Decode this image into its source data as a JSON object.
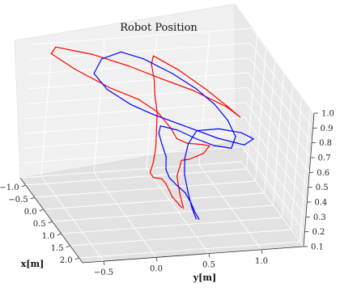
{
  "chart_data": {
    "type": "line",
    "projection": "3d",
    "title": "Robot Position",
    "xlabel": "x[m]",
    "ylabel": "y[m]",
    "zlabel": "",
    "grid": true,
    "xlim": [
      -1.3,
      2.2
    ],
    "ylim": [
      -0.7,
      1.4
    ],
    "zlim": [
      0.1,
      1.0
    ],
    "x_ticks": [
      "−1.0",
      "−0.5",
      "0.0",
      "0.5",
      "1.0",
      "1.5",
      "2.0"
    ],
    "y_ticks": [
      "−0.5",
      "0.0",
      "0.5",
      "1.0"
    ],
    "z_ticks": [
      "0.1",
      "0.2",
      "0.3",
      "0.4",
      "0.5",
      "0.6",
      "0.7",
      "0.8",
      "0.9",
      "1.0"
    ],
    "series": [
      {
        "color": "#ff0000",
        "points": [
          [
            0.9,
            0.45,
            0.2
          ],
          [
            0.86,
            0.4,
            0.24
          ],
          [
            0.92,
            0.35,
            0.28
          ],
          [
            1.0,
            0.3,
            0.34
          ],
          [
            1.05,
            0.25,
            0.4
          ],
          [
            1.1,
            0.2,
            0.44
          ],
          [
            1.2,
            0.1,
            0.47
          ],
          [
            1.28,
            0.05,
            0.52
          ],
          [
            1.25,
            0.08,
            0.58
          ],
          [
            1.05,
            0.13,
            0.65
          ],
          [
            0.8,
            0.17,
            0.72
          ],
          [
            0.5,
            0.22,
            0.79
          ],
          [
            0.2,
            0.24,
            0.86
          ],
          [
            -0.05,
            0.27,
            0.92
          ],
          [
            -0.3,
            0.28,
            0.98
          ],
          [
            -0.5,
            0.33,
            1.0
          ],
          [
            -0.35,
            0.55,
            0.92
          ],
          [
            -0.2,
            0.8,
            0.8
          ],
          [
            -0.1,
            1.0,
            0.69
          ],
          [
            -0.05,
            1.12,
            0.62
          ],
          [
            -0.15,
            1.0,
            0.68
          ],
          [
            -0.3,
            0.7,
            0.78
          ],
          [
            -0.4,
            0.4,
            0.86
          ],
          [
            -0.45,
            0.1,
            0.95
          ],
          [
            -0.5,
            -0.25,
            1.04
          ],
          [
            -0.55,
            -0.6,
            1.1
          ],
          [
            -0.65,
            -0.62,
            1.04
          ],
          [
            -0.55,
            -0.4,
            0.94
          ],
          [
            -0.3,
            -0.1,
            0.84
          ],
          [
            -0.1,
            0.15,
            0.78
          ],
          [
            0.1,
            0.3,
            0.72
          ],
          [
            0.3,
            0.4,
            0.64
          ],
          [
            0.38,
            0.45,
            0.58
          ],
          [
            0.25,
            0.58,
            0.52
          ],
          [
            0.1,
            0.74,
            0.48
          ],
          [
            0.0,
            0.84,
            0.45
          ],
          [
            0.05,
            0.78,
            0.41
          ],
          [
            0.3,
            0.6,
            0.42
          ],
          [
            0.55,
            0.48,
            0.46
          ],
          [
            0.7,
            0.42,
            0.38
          ],
          [
            0.9,
            0.42,
            0.3
          ],
          [
            1.05,
            0.44,
            0.22
          ]
        ]
      },
      {
        "color": "#0000ff",
        "points": [
          [
            1.3,
            0.55,
            0.18
          ],
          [
            1.2,
            0.52,
            0.22
          ],
          [
            1.1,
            0.5,
            0.26
          ],
          [
            1.02,
            0.45,
            0.32
          ],
          [
            0.95,
            0.38,
            0.36
          ],
          [
            0.85,
            0.32,
            0.4
          ],
          [
            0.75,
            0.3,
            0.44
          ],
          [
            0.6,
            0.32,
            0.5
          ],
          [
            0.45,
            0.3,
            0.56
          ],
          [
            0.35,
            0.28,
            0.62
          ],
          [
            0.3,
            0.3,
            0.66
          ],
          [
            0.4,
            0.45,
            0.64
          ],
          [
            0.55,
            0.6,
            0.6
          ],
          [
            0.7,
            0.75,
            0.57
          ],
          [
            0.8,
            0.9,
            0.56
          ],
          [
            0.7,
            0.95,
            0.62
          ],
          [
            0.5,
            0.9,
            0.7
          ],
          [
            0.3,
            0.8,
            0.78
          ],
          [
            0.1,
            0.65,
            0.86
          ],
          [
            -0.1,
            0.45,
            0.94
          ],
          [
            -0.3,
            0.2,
            1.02
          ],
          [
            -0.4,
            0.0,
            1.06
          ],
          [
            -0.3,
            -0.2,
            1.04
          ],
          [
            -0.1,
            -0.3,
            0.98
          ],
          [
            0.1,
            -0.2,
            0.9
          ],
          [
            0.3,
            0.0,
            0.82
          ],
          [
            0.4,
            0.2,
            0.76
          ],
          [
            0.5,
            0.5,
            0.68
          ],
          [
            0.6,
            0.8,
            0.6
          ],
          [
            0.65,
            1.05,
            0.55
          ],
          [
            0.55,
            1.15,
            0.57
          ],
          [
            0.45,
            1.05,
            0.6
          ],
          [
            0.35,
            0.85,
            0.62
          ],
          [
            0.3,
            0.65,
            0.61
          ],
          [
            0.45,
            0.55,
            0.55
          ],
          [
            0.6,
            0.5,
            0.48
          ],
          [
            0.75,
            0.48,
            0.4
          ],
          [
            0.9,
            0.5,
            0.3
          ],
          [
            1.05,
            0.52,
            0.22
          ],
          [
            1.15,
            0.55,
            0.16
          ]
        ]
      }
    ]
  }
}
